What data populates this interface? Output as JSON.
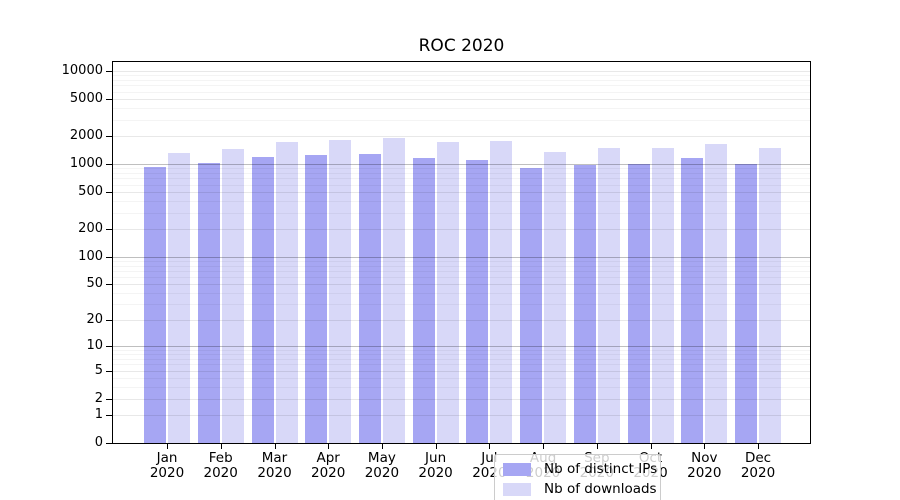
{
  "title": "ROC 2020",
  "colors": {
    "distinct_ips": "#a6a6f3",
    "downloads": "#d8d8f8",
    "axis": "#000000",
    "grid_minor": "#f3f3f3",
    "grid_major": "#e9e9e9",
    "grid_emphasis": "#c2c2c2",
    "legend_border": "#cccccc"
  },
  "chart_data": {
    "type": "bar",
    "title": "ROC 2020",
    "months": [
      "Jan",
      "Feb",
      "Mar",
      "Apr",
      "May",
      "Jun",
      "Jul",
      "Aug",
      "Sep",
      "Oct",
      "Nov",
      "Dec"
    ],
    "year": "2020",
    "categories": [
      "Jan 2020",
      "Feb 2020",
      "Mar 2020",
      "Apr 2020",
      "May 2020",
      "Jun 2020",
      "Jul 2020",
      "Aug 2020",
      "Sep 2020",
      "Oct 2020",
      "Nov 2020",
      "Dec 2020"
    ],
    "series": [
      {
        "name": "Nb of distinct IPs",
        "color": "#a6a6f3",
        "values": [
          930,
          1030,
          1190,
          1250,
          1280,
          1165,
          1100,
          905,
          975,
          1000,
          1160,
          1000
        ]
      },
      {
        "name": "Nb of downloads",
        "color": "#d8d8f8",
        "values": [
          1330,
          1450,
          1720,
          1810,
          1900,
          1710,
          1790,
          1345,
          1480,
          1490,
          1640,
          1480
        ]
      }
    ],
    "xlabel": "",
    "ylabel": "",
    "yscale": "symlog (log10(value+1))",
    "y_ticks": [
      0,
      1,
      2,
      5,
      10,
      20,
      50,
      100,
      200,
      500,
      1000,
      2000,
      5000,
      10000
    ],
    "ylim": [
      0,
      12500
    ],
    "grid": "on, horizontal, drawn over bars",
    "legend_position": "bottom-center inside plot"
  },
  "legend": {
    "items": [
      {
        "label": "Nb of distinct IPs",
        "color": "#a6a6f3"
      },
      {
        "label": "Nb of downloads",
        "color": "#d8d8f8"
      }
    ]
  }
}
